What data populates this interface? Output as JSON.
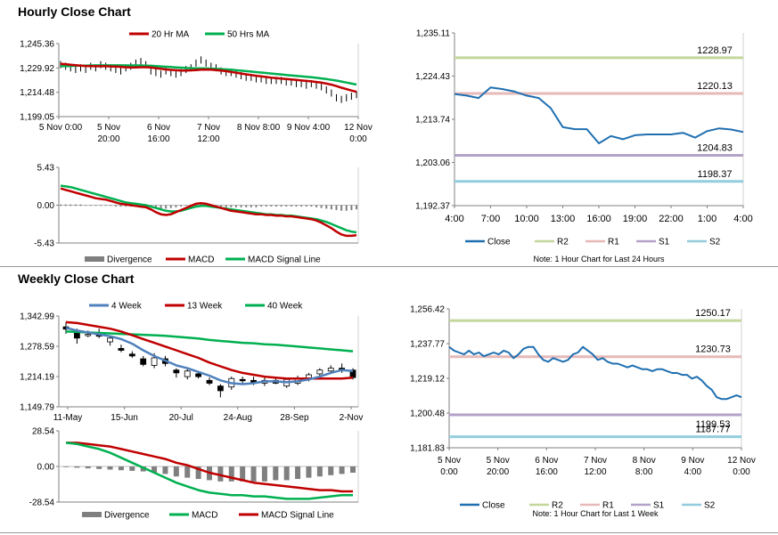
{
  "titles": {
    "hourly": "Hourly Close Chart",
    "weekly": "Weekly Close Chart"
  },
  "colors": {
    "ma_short": "#c00000",
    "ma_long": "#00b050",
    "macd_weekly": "#00b050",
    "signal_weekly": "#c00000",
    "ma_mid_weekly": "#c00000",
    "ma_4wk": "#4f81bd",
    "close": "#1f6fb0",
    "r2": "#c3d69b",
    "r1": "#e6b9b8",
    "s1": "#b3a2c7",
    "s2": "#93cddd",
    "divergence": "#7f7f7f"
  },
  "chart_data": [
    {
      "id": "hourly-price",
      "type": "line",
      "legend": [
        "20 Hr MA",
        "50 Hrs MA"
      ],
      "y_ticks": [
        "1,245.36",
        "1,229.92",
        "1,214.48",
        "1,199.05"
      ],
      "ylim": [
        1199.05,
        1245.36
      ],
      "x_ticks": [
        [
          "5 Nov 0:00"
        ],
        [
          "5 Nov",
          "20:00"
        ],
        [
          "6 Nov",
          "16:00"
        ],
        [
          "7 Nov",
          "12:00"
        ],
        [
          "8 Nov 8:00"
        ],
        [
          "9 Nov 4:00"
        ],
        [
          "12 Nov",
          "0:00"
        ]
      ],
      "n": 60,
      "close": [
        1232,
        1231,
        1230,
        1229,
        1230,
        1229,
        1231,
        1230,
        1232,
        1231,
        1230,
        1229,
        1228,
        1230,
        1231,
        1233,
        1234,
        1232,
        1228,
        1227,
        1226,
        1228,
        1227,
        1226,
        1227,
        1229,
        1230,
        1233,
        1235,
        1233,
        1231,
        1230,
        1228,
        1227,
        1227,
        1226,
        1225,
        1224,
        1224,
        1223,
        1223,
        1222,
        1222,
        1222,
        1222,
        1221,
        1221,
        1220,
        1220,
        1219,
        1220,
        1219,
        1218,
        1216,
        1214,
        1211,
        1210,
        1211,
        1212,
        1213
      ],
      "series": [
        {
          "name": "20 Hr MA",
          "values": [
            1232.5,
            1232.3,
            1232.0,
            1231.7,
            1231.4,
            1231.2,
            1231.1,
            1231.0,
            1231.0,
            1231.0,
            1230.9,
            1230.8,
            1230.6,
            1230.4,
            1230.3,
            1230.3,
            1230.4,
            1230.4,
            1230.2,
            1229.8,
            1229.4,
            1229.0,
            1228.7,
            1228.5,
            1228.3,
            1228.3,
            1228.4,
            1228.6,
            1228.8,
            1228.9,
            1228.8,
            1228.6,
            1228.3,
            1227.9,
            1227.4,
            1226.9,
            1226.4,
            1225.9,
            1225.4,
            1225.0,
            1224.6,
            1224.2,
            1223.8,
            1223.5,
            1223.2,
            1222.9,
            1222.6,
            1222.3,
            1222.0,
            1221.7,
            1221.4,
            1221.0,
            1220.6,
            1220.0,
            1219.3,
            1218.4,
            1217.4,
            1216.5,
            1215.6,
            1214.8
          ]
        },
        {
          "name": "50 Hrs MA",
          "values": [
            1231.0,
            1231.1,
            1231.2,
            1231.3,
            1231.4,
            1231.4,
            1231.5,
            1231.5,
            1231.6,
            1231.6,
            1231.6,
            1231.6,
            1231.6,
            1231.5,
            1231.5,
            1231.5,
            1231.5,
            1231.4,
            1231.3,
            1231.1,
            1230.9,
            1230.7,
            1230.5,
            1230.3,
            1230.1,
            1229.9,
            1229.8,
            1229.7,
            1229.7,
            1229.6,
            1229.5,
            1229.4,
            1229.2,
            1229.0,
            1228.8,
            1228.5,
            1228.2,
            1227.9,
            1227.6,
            1227.3,
            1227.0,
            1226.7,
            1226.4,
            1226.1,
            1225.8,
            1225.5,
            1225.2,
            1224.9,
            1224.6,
            1224.3,
            1224.0,
            1223.7,
            1223.3,
            1222.9,
            1222.4,
            1221.9,
            1221.3,
            1220.7,
            1220.0,
            1219.4
          ]
        }
      ]
    },
    {
      "id": "hourly-macd",
      "type": "line",
      "legend": [
        "Divergence",
        "MACD",
        "MACD Signal Line"
      ],
      "y_ticks": [
        "5.43",
        "0.00",
        "-5.43"
      ],
      "ylim": [
        -5.43,
        5.43
      ],
      "n": 60,
      "divergence": [
        0.1,
        0.1,
        0.1,
        0.1,
        0.1,
        0.0,
        0.0,
        0.0,
        0.0,
        0.0,
        0.0,
        -0.1,
        -0.1,
        -0.1,
        -0.1,
        -0.1,
        -0.1,
        -0.1,
        -0.2,
        -0.3,
        -0.4,
        -0.4,
        -0.3,
        -0.2,
        -0.1,
        0.0,
        0.1,
        0.2,
        0.2,
        0.2,
        0.1,
        0.0,
        -0.1,
        -0.2,
        -0.2,
        -0.2,
        -0.2,
        -0.2,
        -0.2,
        -0.2,
        -0.1,
        -0.1,
        -0.1,
        -0.1,
        -0.1,
        -0.1,
        -0.1,
        -0.1,
        -0.1,
        -0.1,
        -0.1,
        -0.2,
        -0.3,
        -0.4,
        -0.5,
        -0.6,
        -0.7,
        -0.7,
        -0.6,
        -0.5
      ],
      "series": [
        {
          "name": "MACD",
          "values": [
            2.4,
            2.2,
            2.0,
            1.8,
            1.6,
            1.4,
            1.2,
            1.0,
            0.9,
            0.8,
            0.6,
            0.4,
            0.2,
            0.1,
            0.0,
            -0.1,
            -0.2,
            -0.3,
            -0.6,
            -1.0,
            -1.3,
            -1.4,
            -1.3,
            -1.0,
            -0.7,
            -0.4,
            -0.1,
            0.2,
            0.3,
            0.2,
            0.0,
            -0.2,
            -0.4,
            -0.6,
            -0.8,
            -0.9,
            -1.0,
            -1.1,
            -1.2,
            -1.3,
            -1.3,
            -1.4,
            -1.4,
            -1.5,
            -1.5,
            -1.6,
            -1.6,
            -1.7,
            -1.8,
            -1.9,
            -2.0,
            -2.2,
            -2.5,
            -2.9,
            -3.3,
            -3.8,
            -4.2,
            -4.4,
            -4.4,
            -4.3
          ]
        },
        {
          "name": "MACD Signal Line",
          "values": [
            2.8,
            2.7,
            2.6,
            2.4,
            2.2,
            2.0,
            1.8,
            1.6,
            1.4,
            1.2,
            1.0,
            0.8,
            0.6,
            0.4,
            0.3,
            0.2,
            0.1,
            0.0,
            -0.2,
            -0.4,
            -0.6,
            -0.8,
            -0.9,
            -0.9,
            -0.8,
            -0.6,
            -0.4,
            -0.2,
            -0.1,
            -0.1,
            -0.2,
            -0.3,
            -0.4,
            -0.5,
            -0.6,
            -0.7,
            -0.8,
            -0.9,
            -1.0,
            -1.1,
            -1.2,
            -1.3,
            -1.3,
            -1.4,
            -1.4,
            -1.5,
            -1.5,
            -1.6,
            -1.7,
            -1.8,
            -1.9,
            -2.0,
            -2.2,
            -2.4,
            -2.7,
            -3.0,
            -3.3,
            -3.6,
            -3.8,
            -3.9
          ]
        }
      ]
    },
    {
      "id": "hourly-24h",
      "type": "line",
      "y_ticks": [
        "1,235.11",
        "1,224.43",
        "1,213.74",
        "1,203.06",
        "1,192.37"
      ],
      "ylim": [
        1192.37,
        1235.11
      ],
      "x_ticks": [
        "4:00",
        "7:00",
        "10:00",
        "13:00",
        "16:00",
        "19:00",
        "22:00",
        "1:00",
        "4:00"
      ],
      "xlim": [
        0,
        24
      ],
      "levels": [
        {
          "name": "R2",
          "value": 1228.97,
          "label": "1228.97"
        },
        {
          "name": "R1",
          "value": 1220.13,
          "label": "1220.13"
        },
        {
          "name": "S1",
          "value": 1204.83,
          "label": "1204.83"
        },
        {
          "name": "S2",
          "value": 1198.37,
          "label": "1198.37"
        }
      ],
      "legend": [
        "Close",
        "R2",
        "R1",
        "S1",
        "S2"
      ],
      "note": "Note: 1 Hour Chart for Last 24 Hours",
      "close_x": [
        0,
        1,
        2,
        3,
        4,
        5,
        6,
        7,
        8,
        9,
        10,
        11,
        12,
        13,
        14,
        15,
        16,
        17,
        18,
        19,
        20,
        21,
        22,
        23,
        24
      ],
      "close_y": [
        1220.0,
        1219.6,
        1219.0,
        1221.6,
        1221.2,
        1220.6,
        1219.6,
        1219.0,
        1216.5,
        1211.8,
        1211.3,
        1211.3,
        1207.8,
        1209.6,
        1208.8,
        1209.8,
        1210.0,
        1210.0,
        1210.0,
        1210.4,
        1209.2,
        1210.8,
        1211.5,
        1211.2,
        1210.6
      ]
    },
    {
      "id": "weekly-price",
      "type": "line",
      "legend": [
        "4 Week",
        "13 Week",
        "40 Week"
      ],
      "y_ticks": [
        "1,342.99",
        "1,278.59",
        "1,214.19",
        "1,149.79"
      ],
      "ylim": [
        1149.79,
        1342.99
      ],
      "x_ticks": [
        "11-May",
        "15-Jun",
        "20-Jul",
        "24-Aug",
        "28-Sep",
        "2-Nov"
      ],
      "n": 27,
      "candles": [
        {
          "o": 1320,
          "h": 1330,
          "l": 1305,
          "c": 1315
        },
        {
          "o": 1312,
          "h": 1316,
          "l": 1284,
          "c": 1296
        },
        {
          "o": 1302,
          "h": 1312,
          "l": 1298,
          "c": 1304
        },
        {
          "o": 1306,
          "h": 1316,
          "l": 1296,
          "c": 1300
        },
        {
          "o": 1288,
          "h": 1302,
          "l": 1280,
          "c": 1296
        },
        {
          "o": 1274,
          "h": 1282,
          "l": 1266,
          "c": 1270
        },
        {
          "o": 1262,
          "h": 1268,
          "l": 1254,
          "c": 1258
        },
        {
          "o": 1252,
          "h": 1258,
          "l": 1236,
          "c": 1240
        },
        {
          "o": 1238,
          "h": 1264,
          "l": 1232,
          "c": 1254
        },
        {
          "o": 1252,
          "h": 1258,
          "l": 1236,
          "c": 1242
        },
        {
          "o": 1228,
          "h": 1232,
          "l": 1212,
          "c": 1222
        },
        {
          "o": 1214,
          "h": 1230,
          "l": 1208,
          "c": 1226
        },
        {
          "o": 1220,
          "h": 1226,
          "l": 1210,
          "c": 1214
        },
        {
          "o": 1206,
          "h": 1212,
          "l": 1196,
          "c": 1200
        },
        {
          "o": 1194,
          "h": 1198,
          "l": 1170,
          "c": 1184
        },
        {
          "o": 1192,
          "h": 1214,
          "l": 1186,
          "c": 1210
        },
        {
          "o": 1208,
          "h": 1214,
          "l": 1200,
          "c": 1206
        },
        {
          "o": 1206,
          "h": 1214,
          "l": 1196,
          "c": 1200
        },
        {
          "o": 1200,
          "h": 1214,
          "l": 1194,
          "c": 1206
        },
        {
          "o": 1206,
          "h": 1212,
          "l": 1198,
          "c": 1200
        },
        {
          "o": 1194,
          "h": 1212,
          "l": 1190,
          "c": 1208
        },
        {
          "o": 1200,
          "h": 1216,
          "l": 1196,
          "c": 1210
        },
        {
          "o": 1210,
          "h": 1222,
          "l": 1204,
          "c": 1218
        },
        {
          "o": 1220,
          "h": 1232,
          "l": 1214,
          "c": 1228
        },
        {
          "o": 1226,
          "h": 1238,
          "l": 1220,
          "c": 1232
        },
        {
          "o": 1232,
          "h": 1242,
          "l": 1222,
          "c": 1228
        },
        {
          "o": 1228,
          "h": 1232,
          "l": 1208,
          "c": 1212
        }
      ],
      "series": [
        {
          "name": "4 Week",
          "values": [
            1318,
            1312,
            1308,
            1304,
            1300,
            1294,
            1284,
            1270,
            1258,
            1248,
            1238,
            1232,
            1224,
            1216,
            1206,
            1200,
            1198,
            1200,
            1204,
            1204,
            1202,
            1204,
            1208,
            1214,
            1222,
            1228,
            1226
          ]
        },
        {
          "name": "13 Week",
          "values": [
            1330,
            1328,
            1324,
            1320,
            1316,
            1310,
            1302,
            1294,
            1286,
            1278,
            1270,
            1262,
            1254,
            1244,
            1236,
            1228,
            1222,
            1218,
            1214,
            1212,
            1210,
            1210,
            1210,
            1210,
            1210,
            1210,
            1212
          ]
        },
        {
          "name": "40 Week",
          "values": [
            1310,
            1309,
            1308,
            1307,
            1306,
            1305,
            1304,
            1303,
            1302,
            1301,
            1299,
            1297,
            1295,
            1292,
            1290,
            1288,
            1286,
            1285,
            1283,
            1282,
            1280,
            1278,
            1276,
            1274,
            1272,
            1270,
            1268
          ]
        }
      ]
    },
    {
      "id": "weekly-macd",
      "type": "line",
      "legend": [
        "Divergence",
        "MACD",
        "MACD Signal Line"
      ],
      "y_ticks": [
        "28.54",
        "0.00",
        "-28.54"
      ],
      "ylim": [
        -28.54,
        28.54
      ],
      "n": 27,
      "divergence": [
        0,
        -1,
        -1.5,
        -2,
        -2.5,
        -3,
        -3.5,
        -4,
        -5,
        -6,
        -8,
        -9,
        -10,
        -11,
        -12,
        -12,
        -12,
        -12,
        -12,
        -11,
        -11,
        -10,
        -9,
        -8,
        -7,
        -6,
        -5
      ],
      "series": [
        {
          "name": "MACD",
          "values": [
            19,
            18,
            16,
            14,
            11,
            7,
            3,
            -1,
            -5,
            -9,
            -13,
            -16,
            -19,
            -21,
            -22,
            -23,
            -23,
            -24,
            -24,
            -25,
            -26,
            -26,
            -26,
            -25,
            -24,
            -23,
            -23
          ]
        },
        {
          "name": "MACD Signal Line",
          "values": [
            19,
            19,
            18,
            17,
            16,
            14,
            12,
            10,
            8,
            6,
            3,
            1,
            -2,
            -5,
            -7,
            -9,
            -11,
            -13,
            -14,
            -15,
            -16,
            -17,
            -18,
            -19,
            -19,
            -20,
            -20
          ]
        }
      ]
    },
    {
      "id": "weekly-1w",
      "type": "line",
      "y_ticks": [
        "1,256.42",
        "1,237.77",
        "1,219.12",
        "1,200.48",
        "1,181.83"
      ],
      "ylim": [
        1181.83,
        1256.42
      ],
      "x_ticks": [
        [
          "5 Nov",
          "0:00"
        ],
        [
          "5 Nov",
          "20:00"
        ],
        [
          "6 Nov",
          "16:00"
        ],
        [
          "7 Nov",
          "12:00"
        ],
        [
          "8 Nov",
          "8:00"
        ],
        [
          "9 Nov",
          "4:00"
        ],
        [
          "12 Nov",
          "0:00"
        ]
      ],
      "xlim": [
        0,
        60
      ],
      "levels": [
        {
          "name": "R2",
          "value": 1250.17,
          "label": "1250.17"
        },
        {
          "name": "R1",
          "value": 1230.73,
          "label": "1230.73"
        },
        {
          "name": "S1",
          "value": 1199.53,
          "label": "1199.53"
        },
        {
          "name": "S2",
          "value": 1187.77,
          "label": "1187.77"
        }
      ],
      "legend": [
        "Close",
        "R2",
        "R1",
        "S1",
        "S2"
      ],
      "note": "Note: 1 Hour Chart for Last 1 Week",
      "close_y": [
        1236,
        1234,
        1233,
        1232,
        1234,
        1232,
        1233,
        1231,
        1232,
        1233,
        1232,
        1234,
        1233,
        1230,
        1232,
        1235,
        1236,
        1236,
        1232,
        1229,
        1228,
        1230,
        1229,
        1228,
        1229,
        1232,
        1233,
        1236,
        1234,
        1232,
        1229,
        1230,
        1228,
        1227,
        1227,
        1226,
        1225,
        1226,
        1225,
        1224,
        1224,
        1223,
        1224,
        1224,
        1223,
        1222,
        1222,
        1221,
        1221,
        1219,
        1220,
        1218,
        1215,
        1213,
        1209,
        1208,
        1208,
        1209,
        1210,
        1209
      ]
    }
  ]
}
